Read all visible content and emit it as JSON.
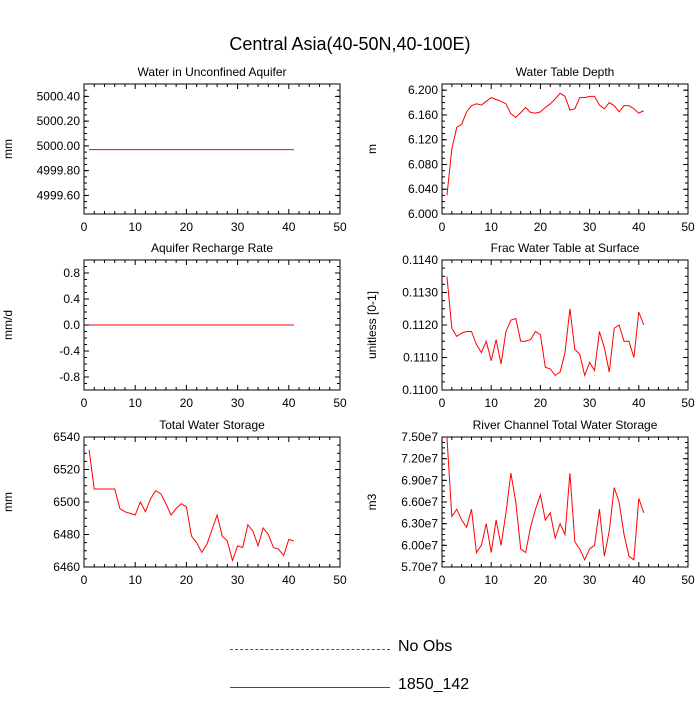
{
  "main_title": "Central Asia(40-50N,40-100E)",
  "legend": {
    "items": [
      {
        "label": "No Obs",
        "style": "dashed",
        "color": "#5555aa"
      },
      {
        "label": "1850_142",
        "style": "solid",
        "color": "#ff0000"
      }
    ]
  },
  "chart_data": [
    {
      "type": "line",
      "title": "Water in Unconfined Aquifer",
      "ylabel": "mm",
      "xlim": [
        0,
        50
      ],
      "ylim": [
        4999.45,
        5000.5
      ],
      "xticks": [
        0,
        10,
        20,
        30,
        40,
        50
      ],
      "yticks": [
        4999.6,
        4999.8,
        5000.0,
        5000.2,
        5000.4
      ],
      "ytick_labels": [
        "4999.60",
        "4999.80",
        "5000.00",
        "5000.20",
        "5000.40"
      ],
      "series": [
        {
          "name": "1850_142",
          "color": "#ff0000",
          "x": [
            1,
            2,
            3,
            4,
            5,
            6,
            7,
            8,
            9,
            10,
            11,
            12,
            13,
            14,
            15,
            16,
            17,
            18,
            19,
            20,
            21,
            22,
            23,
            24,
            25,
            26,
            27,
            28,
            29,
            30,
            31,
            32,
            33,
            34,
            35,
            36,
            37,
            38,
            39,
            40,
            41
          ],
          "y": [
            4999.97,
            4999.97,
            4999.97,
            4999.97,
            4999.97,
            4999.97,
            4999.97,
            4999.97,
            4999.97,
            4999.97,
            4999.97,
            4999.97,
            4999.97,
            4999.97,
            4999.97,
            4999.97,
            4999.97,
            4999.97,
            4999.97,
            4999.97,
            4999.97,
            4999.97,
            4999.97,
            4999.97,
            4999.97,
            4999.97,
            4999.97,
            4999.97,
            4999.97,
            4999.97,
            4999.97,
            4999.97,
            4999.97,
            4999.97,
            4999.97,
            4999.97,
            4999.97,
            4999.97,
            4999.97,
            4999.97,
            4999.97
          ]
        }
      ]
    },
    {
      "type": "line",
      "title": "Water Table Depth",
      "ylabel": "m",
      "xlim": [
        0,
        50
      ],
      "ylim": [
        6.0,
        6.21
      ],
      "xticks": [
        0,
        10,
        20,
        30,
        40,
        50
      ],
      "yticks": [
        6.0,
        6.04,
        6.08,
        6.12,
        6.16,
        6.2
      ],
      "ytick_labels": [
        "6.000",
        "6.040",
        "6.080",
        "6.120",
        "6.160",
        "6.200"
      ],
      "series": [
        {
          "name": "1850_142",
          "color": "#ff0000",
          "x": [
            1,
            2,
            3,
            4,
            5,
            6,
            7,
            8,
            9,
            10,
            11,
            12,
            13,
            14,
            15,
            16,
            17,
            18,
            19,
            20,
            21,
            22,
            23,
            24,
            25,
            26,
            27,
            28,
            29,
            30,
            31,
            32,
            33,
            34,
            35,
            36,
            37,
            38,
            39,
            40,
            41
          ],
          "y": [
            6.03,
            6.105,
            6.14,
            6.145,
            6.165,
            6.175,
            6.178,
            6.176,
            6.182,
            6.188,
            6.185,
            6.182,
            6.178,
            6.162,
            6.156,
            6.164,
            6.172,
            6.164,
            6.163,
            6.165,
            6.172,
            6.178,
            6.186,
            6.195,
            6.19,
            6.168,
            6.17,
            6.188,
            6.188,
            6.19,
            6.19,
            6.176,
            6.17,
            6.18,
            6.175,
            6.165,
            6.175,
            6.175,
            6.17,
            6.163,
            6.167
          ]
        }
      ]
    },
    {
      "type": "line",
      "title": "Aquifer Recharge Rate",
      "ylabel": "mm/d",
      "xlim": [
        0,
        50
      ],
      "ylim": [
        -1.0,
        1.0
      ],
      "xticks": [
        0,
        10,
        20,
        30,
        40,
        50
      ],
      "yticks": [
        -0.8,
        -0.4,
        0.0,
        0.4,
        0.8
      ],
      "ytick_labels": [
        "-0.8",
        "-0.4",
        "0.0",
        "0.4",
        "0.8"
      ],
      "series": [
        {
          "name": "1850_142",
          "color": "#ff0000",
          "x": [
            1,
            2,
            3,
            4,
            5,
            6,
            7,
            8,
            9,
            10,
            11,
            12,
            13,
            14,
            15,
            16,
            17,
            18,
            19,
            20,
            21,
            22,
            23,
            24,
            25,
            26,
            27,
            28,
            29,
            30,
            31,
            32,
            33,
            34,
            35,
            36,
            37,
            38,
            39,
            40,
            41
          ],
          "y": [
            0,
            0,
            0,
            0,
            0,
            0,
            0,
            0,
            0,
            0,
            0,
            0,
            0,
            0,
            0,
            0,
            0,
            0,
            0,
            0,
            0,
            0,
            0,
            0,
            0,
            0,
            0,
            0,
            0,
            0,
            0,
            0,
            0,
            0,
            0,
            0,
            0,
            0,
            0,
            0,
            0
          ]
        }
      ]
    },
    {
      "type": "line",
      "title": "Frac Water Table at Surface",
      "ylabel": "unitless [0-1]",
      "xlim": [
        0,
        50
      ],
      "ylim": [
        0.11,
        0.114
      ],
      "xticks": [
        0,
        10,
        20,
        30,
        40,
        50
      ],
      "yticks": [
        0.11,
        0.111,
        0.112,
        0.113,
        0.114
      ],
      "ytick_labels": [
        "0.1100",
        "0.1110",
        "0.1120",
        "0.1130",
        "0.1140"
      ],
      "series": [
        {
          "name": "1850_142",
          "color": "#ff0000",
          "x": [
            1,
            2,
            3,
            4,
            5,
            6,
            7,
            8,
            9,
            10,
            11,
            12,
            13,
            14,
            15,
            16,
            17,
            18,
            19,
            20,
            21,
            22,
            23,
            24,
            25,
            26,
            27,
            28,
            29,
            30,
            31,
            32,
            33,
            34,
            35,
            36,
            37,
            38,
            39,
            40,
            41
          ],
          "y": [
            0.1135,
            0.1119,
            0.11165,
            0.11175,
            0.1118,
            0.1118,
            0.1114,
            0.11115,
            0.1115,
            0.1109,
            0.11155,
            0.1108,
            0.1118,
            0.11215,
            0.1122,
            0.1115,
            0.1115,
            0.11155,
            0.1118,
            0.1117,
            0.1107,
            0.11065,
            0.11045,
            0.11055,
            0.11115,
            0.1125,
            0.11125,
            0.1111,
            0.11045,
            0.11085,
            0.1106,
            0.1118,
            0.1113,
            0.11055,
            0.1119,
            0.112,
            0.1115,
            0.1115,
            0.111,
            0.1124,
            0.112
          ]
        }
      ]
    },
    {
      "type": "line",
      "title": "Total Water Storage",
      "ylabel": "mm",
      "xlim": [
        0,
        50
      ],
      "ylim": [
        6460,
        6540
      ],
      "xticks": [
        0,
        10,
        20,
        30,
        40,
        50
      ],
      "yticks": [
        6460,
        6480,
        6500,
        6520,
        6540
      ],
      "ytick_labels": [
        "6460",
        "6480",
        "6500",
        "6520",
        "6540"
      ],
      "series": [
        {
          "name": "1850_142",
          "color": "#ff0000",
          "x": [
            1,
            2,
            3,
            4,
            5,
            6,
            7,
            8,
            9,
            10,
            11,
            12,
            13,
            14,
            15,
            16,
            17,
            18,
            19,
            20,
            21,
            22,
            23,
            24,
            25,
            26,
            27,
            28,
            29,
            30,
            31,
            32,
            33,
            34,
            35,
            36,
            37,
            38,
            39,
            40,
            41
          ],
          "y": [
            6532,
            6508,
            6508,
            6508,
            6508,
            6508,
            6496,
            6494,
            6493,
            6492,
            6500,
            6494,
            6502,
            6507,
            6505,
            6499,
            6492,
            6496,
            6499,
            6497,
            6479,
            6475,
            6469,
            6474,
            6483,
            6492,
            6479,
            6476,
            6464,
            6473,
            6472,
            6486,
            6482,
            6473,
            6484,
            6480,
            6472,
            6471,
            6467,
            6477,
            6476
          ]
        }
      ]
    },
    {
      "type": "line",
      "title": "River Channel Total Water Storage",
      "ylabel": "m3",
      "xlim": [
        0,
        50
      ],
      "ylim": [
        57000000.0,
        75000000.0
      ],
      "xticks": [
        0,
        10,
        20,
        30,
        40,
        50
      ],
      "yticks": [
        57000000.0,
        60000000.0,
        63000000.0,
        66000000.0,
        69000000.0,
        72000000.0,
        75000000.0
      ],
      "ytick_labels": [
        "5.70e7",
        "6.00e7",
        "6.30e7",
        "6.60e7",
        "6.90e7",
        "7.20e7",
        "7.50e7"
      ],
      "series": [
        {
          "name": "1850_142",
          "color": "#ff0000",
          "x": [
            1,
            2,
            3,
            4,
            5,
            6,
            7,
            8,
            9,
            10,
            11,
            12,
            13,
            14,
            15,
            16,
            17,
            18,
            19,
            20,
            21,
            22,
            23,
            24,
            25,
            26,
            27,
            28,
            29,
            30,
            31,
            32,
            33,
            34,
            35,
            36,
            37,
            38,
            39,
            40,
            41
          ],
          "y": [
            75000000.0,
            64000000.0,
            65000000.0,
            63500000.0,
            62500000.0,
            65000000.0,
            59000000.0,
            60000000.0,
            63000000.0,
            59000000.0,
            63500000.0,
            60000000.0,
            64500000.0,
            70000000.0,
            66000000.0,
            59500000.0,
            59000000.0,
            62500000.0,
            65000000.0,
            67000000.0,
            63500000.0,
            64500000.0,
            61000000.0,
            63000000.0,
            61500000.0,
            70000000.0,
            60500000.0,
            59500000.0,
            58000000.0,
            59500000.0,
            60000000.0,
            65000000.0,
            58500000.0,
            62000000.0,
            68000000.0,
            66000000.0,
            61500000.0,
            58500000.0,
            58000000.0,
            66500000.0,
            64500000.0
          ]
        }
      ]
    }
  ]
}
